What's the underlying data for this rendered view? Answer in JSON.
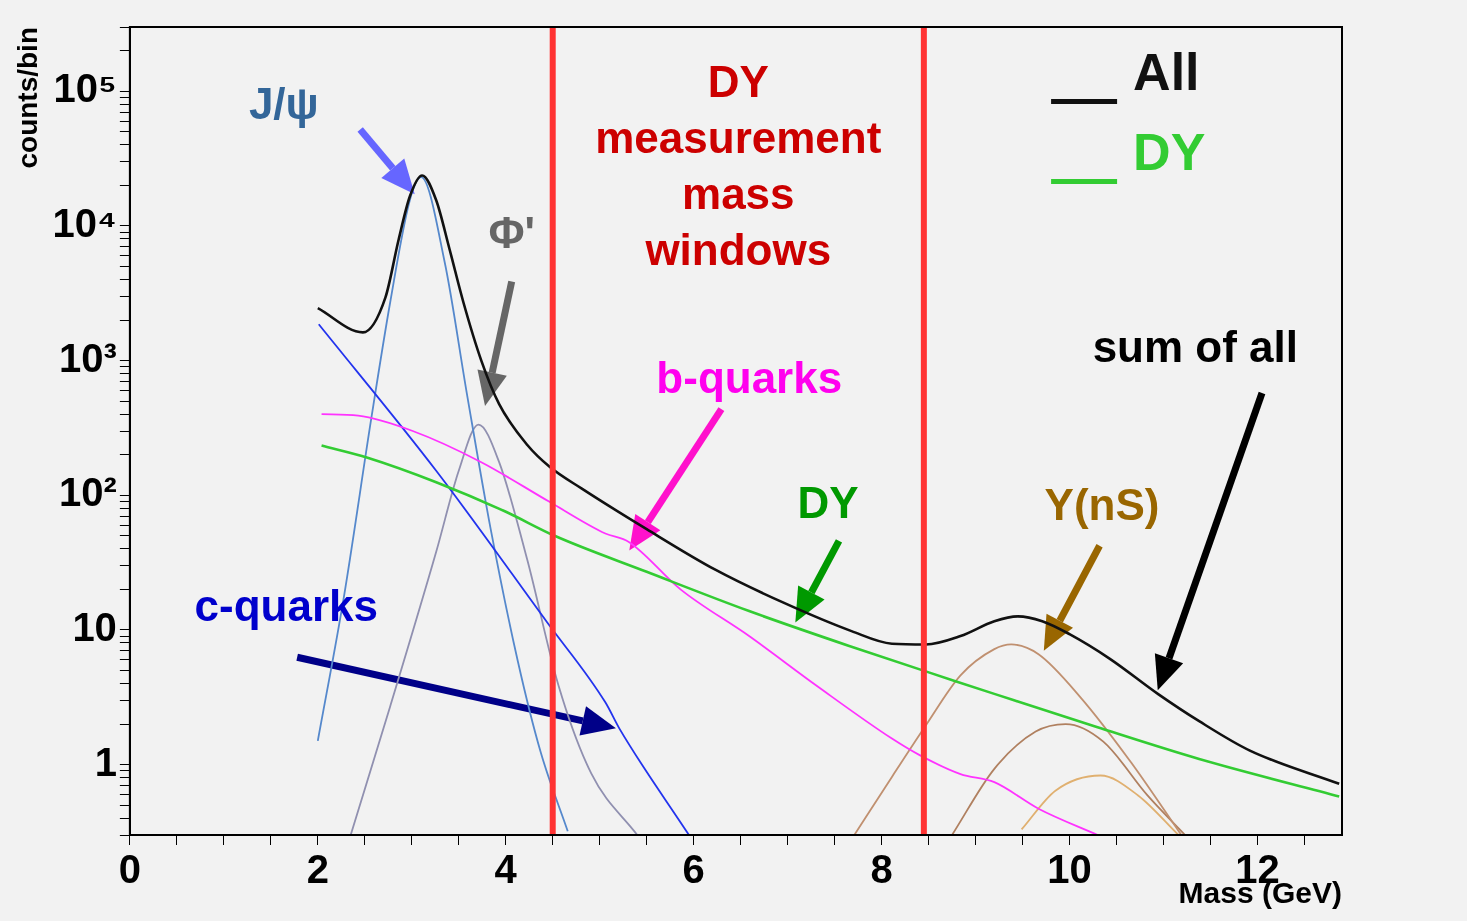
{
  "chart_data": {
    "type": "line",
    "xlabel": "Mass (GeV)",
    "ylabel": "counts/bin",
    "log": "y",
    "marker": "none",
    "legend": "top right",
    "xlim": [
      0,
      12.9
    ],
    "ylim": [
      0.3,
      300000
    ],
    "xticks": [
      0,
      {
        "value": 0.5,
        "label": null
      },
      {
        "value": 1,
        "label": null
      },
      {
        "value": 1.5,
        "label": null
      },
      2,
      {
        "value": 2.5,
        "label": null
      },
      {
        "value": 3,
        "label": null
      },
      {
        "value": 3.5,
        "label": null
      },
      4,
      {
        "value": 4.5,
        "label": null
      },
      {
        "value": 5,
        "label": null
      },
      {
        "value": 5.5,
        "label": null
      },
      6,
      {
        "value": 6.5,
        "label": null
      },
      {
        "value": 7,
        "label": null
      },
      {
        "value": 7.5,
        "label": null
      },
      8,
      {
        "value": 8.5,
        "label": null
      },
      {
        "value": 9,
        "label": null
      },
      {
        "value": 9.5,
        "label": null
      },
      10,
      {
        "value": 10.5,
        "label": null
      },
      {
        "value": 11,
        "label": null
      },
      {
        "value": 11.5,
        "label": null
      },
      12,
      {
        "value": 12.5,
        "label": null
      }
    ],
    "yticks": [
      {
        "value": 0.3,
        "label": null
      },
      {
        "value": 0.4,
        "label": null
      },
      {
        "value": 0.5,
        "label": null
      },
      {
        "value": 0.6,
        "label": null
      },
      {
        "value": 0.7,
        "label": null
      },
      {
        "value": 0.8,
        "label": null
      },
      {
        "value": 0.9,
        "label": null
      },
      1,
      {
        "value": 2,
        "label": null
      },
      {
        "value": 3,
        "label": null
      },
      {
        "value": 4,
        "label": null
      },
      {
        "value": 5,
        "label": null
      },
      {
        "value": 6,
        "label": null
      },
      {
        "value": 7,
        "label": null
      },
      {
        "value": 8,
        "label": null
      },
      {
        "value": 9,
        "label": null
      },
      10,
      {
        "value": 20,
        "label": null
      },
      {
        "value": 30,
        "label": null
      },
      {
        "value": 40,
        "label": null
      },
      {
        "value": 50,
        "label": null
      },
      {
        "value": 60,
        "label": null
      },
      {
        "value": 70,
        "label": null
      },
      {
        "value": 80,
        "label": null
      },
      {
        "value": 90,
        "label": null
      },
      {
        "value": 100,
        "label": "10²"
      },
      {
        "value": 200,
        "label": null
      },
      {
        "value": 300,
        "label": null
      },
      {
        "value": 400,
        "label": null
      },
      {
        "value": 500,
        "label": null
      },
      {
        "value": 600,
        "label": null
      },
      {
        "value": 700,
        "label": null
      },
      {
        "value": 800,
        "label": null
      },
      {
        "value": 900,
        "label": null
      },
      {
        "value": 1000,
        "label": "10³"
      },
      {
        "value": 2000,
        "label": null
      },
      {
        "value": 3000,
        "label": null
      },
      {
        "value": 4000,
        "label": null
      },
      {
        "value": 5000,
        "label": null
      },
      {
        "value": 6000,
        "label": null
      },
      {
        "value": 7000,
        "label": null
      },
      {
        "value": 8000,
        "label": null
      },
      {
        "value": 9000,
        "label": null
      },
      {
        "value": 10000,
        "label": "10⁴"
      },
      {
        "value": 20000,
        "label": null
      },
      {
        "value": 30000,
        "label": null
      },
      {
        "value": 40000,
        "label": null
      },
      {
        "value": 50000,
        "label": null
      },
      {
        "value": 60000,
        "label": null
      },
      {
        "value": 70000,
        "label": null
      },
      {
        "value": 80000,
        "label": null
      },
      {
        "value": 90000,
        "label": null
      },
      {
        "value": 100000,
        "label": "10⁵"
      },
      {
        "value": 200000,
        "label": null
      },
      {
        "value": 300000,
        "label": null
      }
    ],
    "series": [
      {
        "name": "All",
        "color": "#111111",
        "x": [
          2,
          2.48,
          2.72,
          2.86,
          2.98,
          3.11,
          3.26,
          3.4,
          3.55,
          3.74,
          3.93,
          4.23,
          4.47,
          4.81,
          5.5,
          6.23,
          6.95,
          7.68,
          8.11,
          8.47,
          8.84,
          9.2,
          9.45,
          9.71,
          10,
          10.43,
          10.94,
          11.38,
          11.92,
          12.87
        ],
        "values": [
          2450,
          1620,
          2950,
          7900,
          16600,
          23700,
          15500,
          6800,
          2700,
          1000,
          475,
          236,
          162,
          112,
          56,
          28,
          16,
          9.8,
          7.9,
          7.8,
          9,
          11.6,
          12.6,
          11.6,
          9.3,
          6.1,
          3.35,
          2.1,
          1.27,
          0.72
        ]
      },
      {
        "name": "DY",
        "color": "#33cc33",
        "x": [
          2.04,
          2.53,
          3.26,
          3.99,
          4.52,
          5.5,
          6.59,
          7.68,
          8.77,
          9.2,
          10.29,
          11.38,
          12.87
        ],
        "values": [
          234,
          190,
          125,
          76,
          50,
          27,
          13.8,
          7.5,
          4.2,
          3.35,
          1.9,
          1.1,
          0.58
        ]
      },
      {
        "color": "#ff33ff",
        "x": [
          2.04,
          2.43,
          3.01,
          3.74,
          4.47,
          5.06,
          5.31,
          5.86,
          6.59,
          7.32,
          8.11,
          8.41,
          8.84,
          9.2,
          9.67,
          10.3
        ],
        "values": [
          400,
          390,
          300,
          176,
          89,
          52,
          45,
          20,
          9,
          3.8,
          1.56,
          1.17,
          0.85,
          0.74,
          0.47,
          0.3
        ]
      },
      {
        "color": "#2233ee",
        "x": [
          2.01,
          3.26,
          4.44,
          5.06,
          5.21,
          5.95
        ],
        "values": [
          1860,
          152,
          11.4,
          2.9,
          1.85,
          0.3
        ]
      },
      {
        "color": "#5588cc",
        "x": [
          2,
          2.28,
          2.57,
          2.77,
          2.98,
          3.1,
          3.35,
          3.59,
          3.84,
          4.13,
          4.37,
          4.66
        ],
        "values": [
          1.5,
          18,
          375,
          2700,
          15600,
          23000,
          5400,
          550,
          56,
          5.8,
          1.25,
          0.32
        ]
      },
      {
        "color": "#9090b0",
        "x": [
          2.35,
          2.77,
          3.26,
          3.5,
          3.71,
          3.93,
          4.23,
          4.56,
          4.91,
          5.4
        ],
        "values": [
          0.3,
          2.7,
          38,
          152,
          335,
          176,
          33,
          3.9,
          0.86,
          0.3
        ]
      },
      {
        "color": "#c09070",
        "x": [
          7.71,
          8.11,
          8.47,
          8.84,
          9.2,
          9.38,
          9.67,
          10.11,
          10.65,
          11.19
        ],
        "values": [
          0.3,
          0.81,
          1.95,
          4.6,
          7.2,
          7.8,
          6.6,
          3.2,
          1.05,
          0.3
        ]
      },
      {
        "color": "#b08060",
        "x": [
          8.75,
          9.2,
          9.64,
          9.96,
          10.36,
          10.83,
          11.23
        ],
        "values": [
          0.3,
          0.93,
          1.76,
          2,
          1.48,
          0.59,
          0.3
        ]
      },
      {
        "color": "#e0b070",
        "x": [
          9.49,
          9.85,
          10.33,
          10.73,
          11.16
        ],
        "values": [
          0.33,
          0.64,
          0.83,
          0.59,
          0.3
        ]
      }
    ],
    "ref_lines": [
      {
        "axis": "x",
        "value": 4.5,
        "color": "#ff3333"
      },
      {
        "axis": "x",
        "value": 8.45,
        "color": "#ff3333"
      }
    ],
    "annotations": [
      "J/ψ",
      "Φ'",
      "b-quarks",
      "DY",
      "Υ(nS)",
      "sum of all",
      "c-quarks",
      "DY measurement mass windows"
    ]
  }
}
